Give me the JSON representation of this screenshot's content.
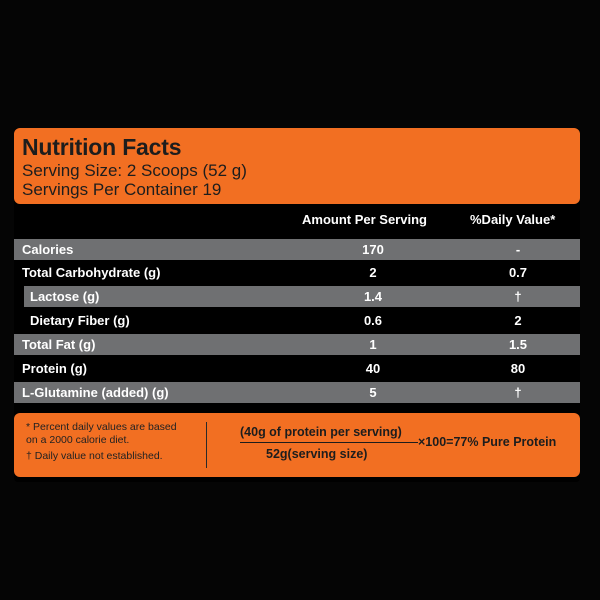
{
  "header": {
    "title": "Nutrition Facts",
    "serving_size": "Serving Size: 2 Scoops (52 g)",
    "servings_per_container": "Servings Per Container 19"
  },
  "columns": {
    "amount": "Amount Per Serving",
    "daily": "%Daily Value*"
  },
  "rows": [
    {
      "label": "Calories",
      "amount": "170",
      "daily": "-"
    },
    {
      "label": "Total Carbohydrate (g)",
      "amount": "2",
      "daily": "0.7"
    },
    {
      "label": "Lactose (g)",
      "amount": "1.4",
      "daily": "†"
    },
    {
      "label": "Dietary Fiber (g)",
      "amount": "0.6",
      "daily": "2"
    },
    {
      "label": "Total Fat (g)",
      "amount": "1",
      "daily": "1.5"
    },
    {
      "label": "Protein (g)",
      "amount": "40",
      "daily": "80"
    },
    {
      "label": "L-Glutamine (added) (g)",
      "amount": "5",
      "daily": "†"
    }
  ],
  "footnotes": {
    "line1": "* Percent daily values are based",
    "line2": "on a 2000 calorie diet.",
    "line3": "† Daily value not established."
  },
  "formula": {
    "numerator": "(40g of protein per serving)",
    "denominator": "52g(serving size)",
    "result": "×100=77% Pure Protein"
  },
  "colors": {
    "accent": "#f26f22",
    "shaded_row": "#6f7072",
    "background": "#050505"
  }
}
